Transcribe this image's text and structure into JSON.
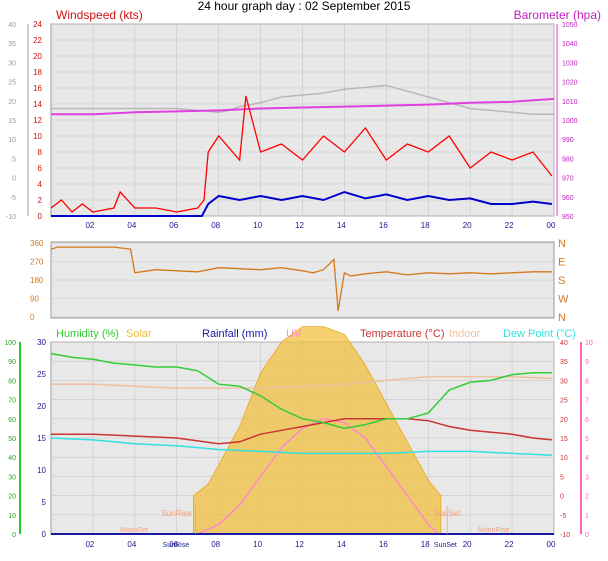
{
  "title": "24 hour graph day : 02 September 2015",
  "panels": {
    "wind": {
      "left_label": "Windspeed (kts)",
      "right_label": "Barometer (hpa)"
    },
    "direction": {},
    "climate": {
      "legend": [
        "Humidity (%)",
        "Solar",
        "Rainfall (mm)",
        "UV",
        "Temperature (°C)",
        "Indoor",
        "Dew Point (°C)"
      ],
      "annotations": {
        "sunrise": "SunRise",
        "sunset": "SunSet",
        "moonset": "MoonSet",
        "moonrise": "MoonRise"
      }
    }
  },
  "colors": {
    "wind_gust": "#ff0000",
    "wind_avg": "#0000cc",
    "barometer": "#e040e0",
    "indoor_pressure": "#b8b8b8",
    "direction": "#d4781c",
    "humidity": "#33cc33",
    "solar": "#f0c040",
    "rainfall": "#1818a0",
    "uv": "#ff88cc",
    "temperature": "#cc3333",
    "indoor_temp": "#f0c0a0",
    "dew_point": "#33e0e0",
    "plot_bg": "#e8e8e8",
    "grid": "#c8c8c8"
  },
  "chart_data": [
    {
      "type": "line",
      "x_ticks": [
        "02",
        "04",
        "06",
        "08",
        "10",
        "12",
        "14",
        "16",
        "18",
        "20",
        "22",
        "00"
      ],
      "xlim": [
        0,
        24
      ],
      "left_axis": {
        "ticks": [
          -10,
          -5,
          0,
          5,
          10,
          15,
          20,
          25,
          30,
          35,
          40
        ],
        "range": [
          -10,
          40
        ]
      },
      "left_inner_axis": {
        "ticks": [
          0,
          2,
          4,
          6,
          8,
          10,
          12,
          14,
          16,
          18,
          20,
          22,
          24
        ],
        "range": [
          0,
          24
        ]
      },
      "right_axis": {
        "ticks": [
          950,
          960,
          970,
          980,
          990,
          1000,
          1010,
          1020,
          1030,
          1040,
          1050
        ],
        "range": [
          950,
          1050
        ]
      },
      "series": [
        {
          "name": "Windspeed (kts)",
          "style": "gust",
          "x": [
            0,
            0.5,
            1,
            1.5,
            2,
            3,
            3.3,
            4,
            5,
            6,
            7,
            7.3,
            7.5,
            8,
            9,
            9.3,
            10,
            11,
            12,
            13,
            14,
            15,
            16,
            17,
            18,
            19,
            20,
            21,
            22,
            23,
            23.9
          ],
          "y": [
            1,
            2,
            0.5,
            1.5,
            0.5,
            1,
            3,
            1,
            1,
            0.5,
            1,
            2,
            8,
            10,
            7,
            15,
            8,
            9,
            7,
            10,
            8,
            11,
            7,
            9,
            8,
            10,
            6,
            8,
            7,
            8,
            5
          ]
        },
        {
          "name": "Windspeed average",
          "style": "avg",
          "x": [
            0,
            2,
            4,
            6,
            7.2,
            7.5,
            8,
            9,
            10,
            11,
            12,
            13,
            14,
            15,
            16,
            17,
            18,
            19,
            20,
            21,
            22,
            23,
            23.9
          ],
          "y": [
            0,
            0,
            0,
            0,
            0,
            1.5,
            2.5,
            2,
            2.5,
            2,
            2.5,
            2,
            3,
            2.2,
            2.7,
            2,
            2.5,
            2,
            2.2,
            1.5,
            1.5,
            1.8,
            1.5
          ]
        },
        {
          "name": "Barometer (hpa)",
          "x": [
            0,
            2,
            4,
            6,
            8,
            10,
            12,
            14,
            16,
            18,
            20,
            22,
            24
          ],
          "y": [
            1003,
            1003,
            1004,
            1004.5,
            1005,
            1006,
            1006.5,
            1007,
            1007.5,
            1008,
            1009,
            1009.5,
            1011
          ]
        },
        {
          "name": "Indoor pressure",
          "x": [
            0,
            2,
            4,
            6,
            8,
            8.5,
            9,
            10,
            11,
            12,
            13,
            14,
            15,
            16,
            17,
            18,
            19,
            20,
            21,
            22,
            23,
            24
          ],
          "y": [
            1006,
            1006,
            1006,
            1006,
            1004,
            1005,
            1007,
            1009,
            1012,
            1013,
            1014,
            1016,
            1017,
            1018,
            1015,
            1012,
            1009,
            1006,
            1005,
            1004,
            1003,
            1003
          ]
        }
      ]
    },
    {
      "type": "line",
      "x_ticks": [],
      "xlim": [
        0,
        24
      ],
      "left_axis": {
        "ticks": [
          0,
          90,
          180,
          270,
          360
        ],
        "range": [
          0,
          360
        ]
      },
      "right_axis": {
        "ticks": [
          "N",
          "W",
          "S",
          "E",
          "N"
        ]
      },
      "series": [
        {
          "name": "Wind direction",
          "x": [
            0,
            0.3,
            1,
            2,
            3,
            3.8,
            4,
            5,
            6,
            7,
            8,
            9,
            10,
            11,
            12,
            12.5,
            13,
            13.5,
            13.7,
            14,
            14.3,
            15,
            16,
            17,
            18,
            19,
            20,
            21,
            22,
            23,
            23.9
          ],
          "y": [
            330,
            340,
            340,
            340,
            340,
            330,
            215,
            230,
            225,
            220,
            240,
            235,
            230,
            240,
            225,
            215,
            230,
            280,
            30,
            215,
            200,
            210,
            220,
            205,
            215,
            210,
            215,
            210,
            215,
            220,
            220
          ]
        }
      ]
    },
    {
      "type": "line",
      "x_ticks": [
        "02",
        "04",
        "06",
        "08",
        "10",
        "12",
        "14",
        "16",
        "18",
        "20",
        "22",
        "00"
      ],
      "xlim": [
        0,
        24
      ],
      "humidity_axis": {
        "ticks": [
          0,
          10,
          20,
          30,
          40,
          50,
          60,
          70,
          80,
          90,
          100
        ],
        "range": [
          0,
          100
        ]
      },
      "rain_axis": {
        "ticks": [
          0,
          5,
          10,
          15,
          20,
          25,
          30
        ],
        "range": [
          0,
          30
        ]
      },
      "temp_axis": {
        "ticks": [
          -10,
          -5,
          0,
          5,
          10,
          15,
          20,
          25,
          30,
          35,
          40
        ],
        "range": [
          -10,
          40
        ]
      },
      "uv_axis": {
        "ticks": [
          0,
          1,
          2,
          3,
          4,
          5,
          6,
          7,
          8,
          9,
          10
        ],
        "range": [
          0,
          10
        ]
      },
      "series": [
        {
          "name": "Humidity (%)",
          "x": [
            0,
            1,
            2,
            3,
            4,
            5,
            6,
            7,
            8,
            9,
            10,
            11,
            12,
            13,
            14,
            15,
            16,
            17,
            18,
            19,
            20,
            21,
            22,
            23,
            23.9
          ],
          "y": [
            94,
            92,
            91,
            89,
            88,
            87,
            87,
            85,
            78,
            77,
            72,
            65,
            60,
            58,
            55,
            57,
            60,
            60,
            63,
            75,
            79,
            80,
            83,
            84,
            84
          ]
        },
        {
          "name": "Temperature (°C)",
          "x": [
            0,
            2,
            4,
            6,
            8,
            9,
            10,
            11,
            12,
            13,
            14,
            15,
            16,
            17,
            18,
            19,
            20,
            21,
            22,
            23,
            23.9
          ],
          "y": [
            16,
            16,
            15.5,
            15,
            13.5,
            14,
            16,
            17,
            18,
            19,
            20,
            20,
            20,
            20,
            19.5,
            18,
            17,
            16.5,
            16,
            15,
            14.5
          ]
        },
        {
          "name": "Indoor",
          "x": [
            0,
            2,
            4,
            6,
            8,
            10,
            12,
            14,
            16,
            18,
            20,
            22,
            23.9
          ],
          "y": [
            29,
            29,
            28.5,
            28,
            28,
            28,
            28.5,
            29,
            30,
            31,
            31,
            31,
            30.5
          ]
        },
        {
          "name": "Dew Point (°C)",
          "x": [
            0,
            2,
            4,
            6,
            8,
            10,
            12,
            14,
            16,
            18,
            20,
            22,
            23.9
          ],
          "y": [
            15,
            14.5,
            13.5,
            13,
            12,
            11.5,
            11,
            11,
            11,
            11.5,
            11.5,
            11,
            10.5
          ]
        },
        {
          "name": "Solar",
          "x": [
            6.8,
            7.5,
            8,
            9,
            10,
            11,
            12,
            13,
            14,
            15,
            16,
            17,
            18,
            18.6
          ],
          "y": [
            0,
            3,
            8,
            18,
            32,
            40,
            44,
            44,
            42,
            34,
            24,
            14,
            4,
            0
          ]
        },
        {
          "name": "UV",
          "x": [
            7,
            8,
            9,
            10,
            11,
            12,
            13,
            14,
            15,
            16,
            17,
            18,
            18.5
          ],
          "y": [
            0,
            0.5,
            1.5,
            3,
            4.5,
            5.5,
            6,
            5.8,
            5,
            3.5,
            2,
            0.5,
            0
          ]
        },
        {
          "name": "Rainfall (mm)",
          "x": [
            0,
            24
          ],
          "y": [
            0,
            0
          ]
        }
      ],
      "annotation_times": {
        "sunrise": 6.9,
        "sunset": 18.9,
        "moonset": 5.1,
        "moonrise": 19.2
      }
    }
  ]
}
